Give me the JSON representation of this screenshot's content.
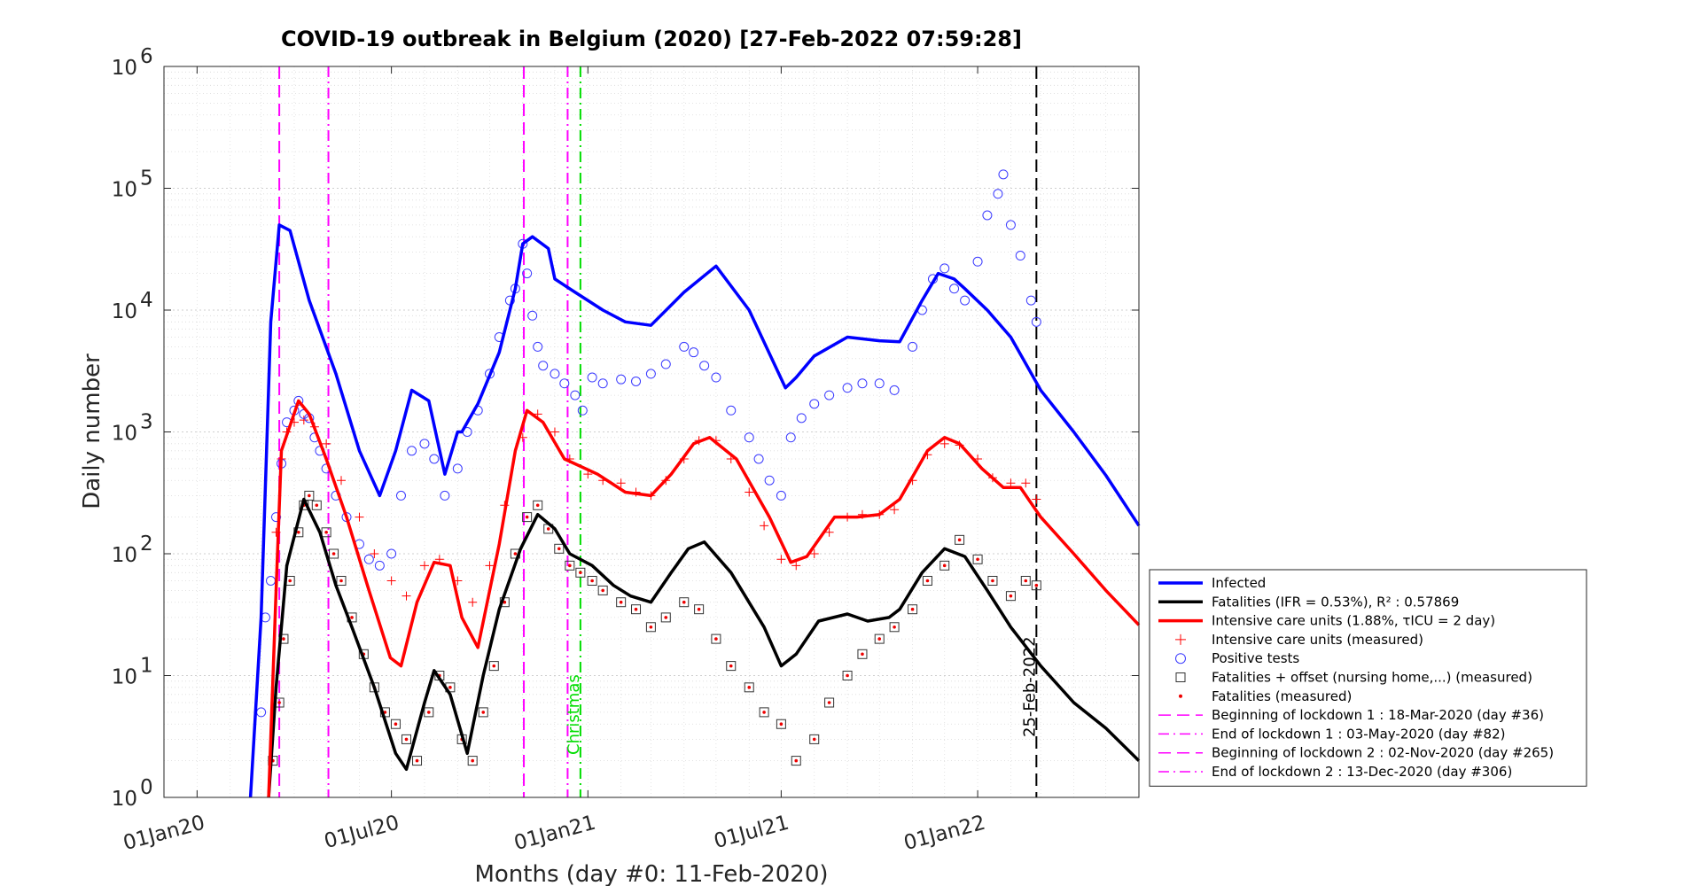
{
  "chart_data": {
    "type": "scatter",
    "title": "COVID-19 outbreak in Belgium (2020) [27-Feb-2022 07:59:28]",
    "xlabel": "Months (day #0: 11-Feb-2020)",
    "ylabel": "Daily number",
    "y_scale": "log",
    "ylim": [
      1,
      1000000
    ],
    "xlim": [
      "2019-12-01",
      "2022-06-01"
    ],
    "grid": true,
    "legend_position": "right",
    "x_ticks": [
      "01Jan20",
      "01Jul20",
      "01Jan21",
      "01Jul21",
      "01Jan22"
    ],
    "x_tick_dates": [
      "2020-01-01",
      "2020-07-01",
      "2021-01-01",
      "2021-07-01",
      "2022-01-01"
    ],
    "y_ticks": [
      {
        "base": "10",
        "exp": "0",
        "value": 1
      },
      {
        "base": "10",
        "exp": "1",
        "value": 10
      },
      {
        "base": "10",
        "exp": "2",
        "value": 100
      },
      {
        "base": "10",
        "exp": "3",
        "value": 1000
      },
      {
        "base": "10",
        "exp": "4",
        "value": 10000
      },
      {
        "base": "10",
        "exp": "5",
        "value": 100000
      },
      {
        "base": "10",
        "exp": "6",
        "value": 1000000
      }
    ],
    "vertical_lines": [
      {
        "date": "2020-03-18",
        "color": "#ff00ff",
        "dash": "dash"
      },
      {
        "date": "2020-05-03",
        "color": "#ff00ff",
        "dash": "dashdot"
      },
      {
        "date": "2020-11-02",
        "color": "#ff00ff",
        "dash": "dash"
      },
      {
        "date": "2020-12-13",
        "color": "#ff00ff",
        "dash": "dashdot"
      },
      {
        "date": "2020-12-25",
        "color": "#00dd00",
        "dash": "dashdot",
        "label": "Christmas"
      },
      {
        "date": "2022-02-25",
        "color": "#000000",
        "dash": "dash",
        "label": "25-Feb-2022"
      }
    ],
    "series": [
      {
        "name": "Infected",
        "kind": "line",
        "color": "#0000ff",
        "x": [
          "2020-02-20",
          "2020-03-01",
          "2020-03-10",
          "2020-03-18",
          "2020-03-28",
          "2020-04-15",
          "2020-05-10",
          "2020-06-01",
          "2020-06-20",
          "2020-07-05",
          "2020-07-20",
          "2020-08-05",
          "2020-08-20",
          "2020-09-01",
          "2020-09-05",
          "2020-09-20",
          "2020-10-10",
          "2020-10-25",
          "2020-11-01",
          "2020-11-10",
          "2020-11-25",
          "2020-12-01",
          "2020-12-20",
          "2021-01-15",
          "2021-02-05",
          "2021-03-01",
          "2021-04-01",
          "2021-05-01",
          "2021-06-01",
          "2021-07-05",
          "2021-07-15",
          "2021-08-01",
          "2021-09-01",
          "2021-10-01",
          "2021-10-20",
          "2021-11-10",
          "2021-11-25",
          "2021-12-10",
          "2021-12-20",
          "2022-01-10",
          "2022-02-01",
          "2022-03-01",
          "2022-04-01",
          "2022-05-01",
          "2022-06-01"
        ],
        "values": [
          1,
          30,
          8000,
          50000,
          45000,
          12000,
          3000,
          700,
          300,
          700,
          2200,
          1800,
          450,
          1000,
          1000,
          1700,
          4500,
          15000,
          35000,
          40000,
          32000,
          18000,
          14000,
          10000,
          8000,
          7500,
          14000,
          23000,
          10000,
          2300,
          2800,
          4200,
          6000,
          5600,
          5500,
          12000,
          20000,
          18000,
          15000,
          10000,
          6000,
          2200,
          1000,
          440,
          170
        ]
      },
      {
        "name": "Fatalities (IFR = 0.53%), R² : 0.57869",
        "kind": "line",
        "color": "#000000",
        "x": [
          "2020-03-08",
          "2020-03-15",
          "2020-03-25",
          "2020-04-10",
          "2020-04-25",
          "2020-05-10",
          "2020-05-25",
          "2020-06-15",
          "2020-07-05",
          "2020-07-15",
          "2020-08-01",
          "2020-08-10",
          "2020-08-25",
          "2020-09-10",
          "2020-09-25",
          "2020-10-10",
          "2020-10-30",
          "2020-11-15",
          "2020-12-01",
          "2020-12-15",
          "2021-01-05",
          "2021-01-25",
          "2021-02-10",
          "2021-03-01",
          "2021-03-20",
          "2021-04-05",
          "2021-04-20",
          "2021-05-15",
          "2021-06-15",
          "2021-07-01",
          "2021-07-15",
          "2021-08-05",
          "2021-09-01",
          "2021-09-20",
          "2021-10-10",
          "2021-10-20",
          "2021-11-10",
          "2021-12-01",
          "2021-12-20",
          "2022-01-10",
          "2022-02-01",
          "2022-03-01",
          "2022-04-01",
          "2022-05-01",
          "2022-06-01"
        ],
        "values": [
          1,
          8,
          80,
          280,
          150,
          55,
          25,
          8,
          2.3,
          1.7,
          6,
          11,
          7,
          2.3,
          10,
          35,
          110,
          210,
          160,
          100,
          80,
          55,
          45,
          40,
          70,
          110,
          125,
          70,
          25,
          12,
          15,
          28,
          32,
          28,
          30,
          35,
          70,
          110,
          95,
          50,
          25,
          12,
          6,
          3.7,
          2
        ]
      },
      {
        "name": "Intensive care units (1.88%, τ_ICU = 2 day)",
        "kind": "line",
        "color": "#ff0000",
        "x": [
          "2020-03-08",
          "2020-03-15",
          "2020-03-20",
          "2020-04-05",
          "2020-04-15",
          "2020-05-01",
          "2020-05-20",
          "2020-06-10",
          "2020-06-30",
          "2020-07-10",
          "2020-07-25",
          "2020-08-10",
          "2020-08-25",
          "2020-09-05",
          "2020-09-20",
          "2020-10-10",
          "2020-10-25",
          "2020-11-05",
          "2020-11-20",
          "2020-12-10",
          "2021-01-10",
          "2021-02-05",
          "2021-03-01",
          "2021-03-20",
          "2021-04-10",
          "2021-04-25",
          "2021-05-20",
          "2021-06-20",
          "2021-07-10",
          "2021-07-25",
          "2021-08-20",
          "2021-09-10",
          "2021-10-01",
          "2021-10-20",
          "2021-11-15",
          "2021-12-01",
          "2021-12-15",
          "2022-01-05",
          "2022-01-25",
          "2022-02-10",
          "2022-03-01",
          "2022-04-01",
          "2022-05-01",
          "2022-06-01"
        ],
        "values": [
          1,
          50,
          700,
          1800,
          1400,
          600,
          200,
          50,
          14,
          12,
          40,
          85,
          80,
          30,
          17,
          120,
          700,
          1500,
          1200,
          600,
          450,
          320,
          300,
          450,
          800,
          900,
          600,
          200,
          85,
          95,
          200,
          200,
          210,
          280,
          700,
          900,
          800,
          500,
          350,
          350,
          200,
          100,
          50,
          26
        ]
      },
      {
        "name": "Intensive care units (measured)",
        "kind": "markers",
        "marker": "+",
        "color": "#ff0000",
        "x": [
          "2020-03-15",
          "2020-03-20",
          "2020-03-25",
          "2020-04-01",
          "2020-04-10",
          "2020-04-20",
          "2020-05-01",
          "2020-05-15",
          "2020-06-01",
          "2020-06-15",
          "2020-07-01",
          "2020-07-15",
          "2020-08-01",
          "2020-08-15",
          "2020-09-01",
          "2020-09-15",
          "2020-10-01",
          "2020-10-15",
          "2020-11-01",
          "2020-11-15",
          "2020-12-01",
          "2020-12-15",
          "2021-01-01",
          "2021-01-15",
          "2021-02-01",
          "2021-02-15",
          "2021-03-01",
          "2021-03-15",
          "2021-04-01",
          "2021-04-15",
          "2021-05-01",
          "2021-05-15",
          "2021-06-01",
          "2021-06-15",
          "2021-07-01",
          "2021-07-15",
          "2021-08-01",
          "2021-08-15",
          "2021-09-01",
          "2021-09-15",
          "2021-10-01",
          "2021-10-15",
          "2021-11-01",
          "2021-11-15",
          "2021-12-01",
          "2021-12-15",
          "2022-01-01",
          "2022-01-15",
          "2022-02-01",
          "2022-02-15",
          "2022-02-25"
        ],
        "values": [
          150,
          600,
          1000,
          1200,
          1250,
          1100,
          800,
          400,
          200,
          100,
          60,
          45,
          80,
          90,
          60,
          40,
          80,
          250,
          900,
          1400,
          1000,
          600,
          450,
          400,
          380,
          320,
          300,
          400,
          600,
          850,
          850,
          600,
          320,
          170,
          90,
          80,
          100,
          150,
          200,
          210,
          210,
          230,
          400,
          650,
          800,
          780,
          600,
          420,
          380,
          380,
          280
        ]
      },
      {
        "name": "Positive tests",
        "kind": "markers",
        "marker": "o",
        "color": "#3a3aff",
        "x": [
          "2020-03-01",
          "2020-03-05",
          "2020-03-10",
          "2020-03-15",
          "2020-03-20",
          "2020-03-25",
          "2020-04-01",
          "2020-04-05",
          "2020-04-10",
          "2020-04-15",
          "2020-04-20",
          "2020-04-25",
          "2020-05-01",
          "2020-05-10",
          "2020-05-20",
          "2020-06-01",
          "2020-06-10",
          "2020-06-20",
          "2020-07-01",
          "2020-07-10",
          "2020-07-20",
          "2020-08-01",
          "2020-08-10",
          "2020-08-20",
          "2020-09-01",
          "2020-09-10",
          "2020-09-20",
          "2020-10-01",
          "2020-10-10",
          "2020-10-20",
          "2020-10-25",
          "2020-11-01",
          "2020-11-05",
          "2020-11-10",
          "2020-11-15",
          "2020-11-20",
          "2020-12-01",
          "2020-12-10",
          "2020-12-20",
          "2020-12-27",
          "2021-01-05",
          "2021-01-15",
          "2021-02-01",
          "2021-02-15",
          "2021-03-01",
          "2021-03-15",
          "2021-04-01",
          "2021-04-10",
          "2021-04-20",
          "2021-05-01",
          "2021-05-15",
          "2021-06-01",
          "2021-06-10",
          "2021-06-20",
          "2021-07-01",
          "2021-07-10",
          "2021-07-20",
          "2021-08-01",
          "2021-08-15",
          "2021-09-01",
          "2021-09-15",
          "2021-10-01",
          "2021-10-15",
          "2021-11-01",
          "2021-11-10",
          "2021-11-20",
          "2021-12-01",
          "2021-12-10",
          "2021-12-20",
          "2022-01-01",
          "2022-01-10",
          "2022-01-20",
          "2022-01-25",
          "2022-02-01",
          "2022-02-10",
          "2022-02-20",
          "2022-02-25"
        ],
        "values": [
          5,
          30,
          60,
          200,
          550,
          1200,
          1500,
          1800,
          1400,
          1300,
          900,
          700,
          500,
          300,
          200,
          120,
          90,
          80,
          100,
          300,
          700,
          800,
          600,
          300,
          500,
          1000,
          1500,
          3000,
          6000,
          12000,
          15000,
          35000,
          20000,
          9000,
          5000,
          3500,
          3000,
          2500,
          2000,
          1500,
          2800,
          2500,
          2700,
          2600,
          3000,
          3600,
          5000,
          4500,
          3500,
          2800,
          1500,
          900,
          600,
          400,
          300,
          900,
          1300,
          1700,
          2000,
          2300,
          2500,
          2500,
          2200,
          5000,
          10000,
          18000,
          22000,
          15000,
          12000,
          25000,
          60000,
          90000,
          130000,
          50000,
          28000,
          12000,
          8000
        ]
      },
      {
        "name": "Fatalities + offset (nursing home,...) (measured)",
        "kind": "markers",
        "marker": "square",
        "color": "#333333",
        "x": [
          "2020-03-12",
          "2020-03-18",
          "2020-03-22",
          "2020-03-28",
          "2020-04-05",
          "2020-04-10",
          "2020-04-15",
          "2020-04-22",
          "2020-05-01",
          "2020-05-08",
          "2020-05-15",
          "2020-05-25",
          "2020-06-05",
          "2020-06-15",
          "2020-06-25",
          "2020-07-05",
          "2020-07-15",
          "2020-07-25",
          "2020-08-05",
          "2020-08-15",
          "2020-08-25",
          "2020-09-05",
          "2020-09-15",
          "2020-09-25",
          "2020-10-05",
          "2020-10-15",
          "2020-10-25",
          "2020-11-05",
          "2020-11-15",
          "2020-11-25",
          "2020-12-05",
          "2020-12-15",
          "2020-12-25",
          "2021-01-05",
          "2021-01-15",
          "2021-02-01",
          "2021-02-15",
          "2021-03-01",
          "2021-03-15",
          "2021-04-01",
          "2021-04-15",
          "2021-05-01",
          "2021-05-15",
          "2021-06-01",
          "2021-06-15",
          "2021-07-01",
          "2021-07-15",
          "2021-08-01",
          "2021-08-15",
          "2021-09-01",
          "2021-09-15",
          "2021-10-01",
          "2021-10-15",
          "2021-11-01",
          "2021-11-15",
          "2021-12-01",
          "2021-12-15",
          "2022-01-01",
          "2022-01-15",
          "2022-02-01",
          "2022-02-15",
          "2022-02-25"
        ],
        "values": [
          2,
          6,
          20,
          60,
          150,
          250,
          300,
          250,
          150,
          100,
          60,
          30,
          15,
          8,
          5,
          4,
          3,
          2,
          5,
          10,
          8,
          3,
          2,
          5,
          12,
          40,
          100,
          200,
          250,
          160,
          110,
          80,
          70,
          60,
          50,
          40,
          35,
          25,
          30,
          40,
          35,
          20,
          12,
          8,
          5,
          4,
          2,
          3,
          6,
          10,
          15,
          20,
          25,
          35,
          60,
          80,
          130,
          90,
          60,
          45,
          60,
          55
        ]
      },
      {
        "name": "Fatalities (measured)",
        "kind": "markers",
        "marker": "dot",
        "color": "#ee0000",
        "x": [
          "2020-03-12",
          "2020-03-18",
          "2020-03-22",
          "2020-03-28",
          "2020-04-05",
          "2020-04-10",
          "2020-04-15",
          "2020-04-22",
          "2020-05-01",
          "2020-05-08",
          "2020-05-15",
          "2020-05-25",
          "2020-06-05",
          "2020-06-15",
          "2020-06-25",
          "2020-07-05",
          "2020-07-15",
          "2020-07-25",
          "2020-08-05",
          "2020-08-15",
          "2020-08-25",
          "2020-09-05",
          "2020-09-15",
          "2020-09-25",
          "2020-10-05",
          "2020-10-15",
          "2020-10-25",
          "2020-11-05",
          "2020-11-15",
          "2020-11-25",
          "2020-12-05",
          "2020-12-15",
          "2020-12-25",
          "2021-01-05",
          "2021-01-15",
          "2021-02-01",
          "2021-02-15",
          "2021-03-01",
          "2021-03-15",
          "2021-04-01",
          "2021-04-15",
          "2021-05-01",
          "2021-05-15",
          "2021-06-01",
          "2021-06-15",
          "2021-07-01",
          "2021-07-15",
          "2021-08-01",
          "2021-08-15",
          "2021-09-01",
          "2021-09-15",
          "2021-10-01",
          "2021-10-15",
          "2021-11-01",
          "2021-11-15",
          "2021-12-01",
          "2021-12-15",
          "2022-01-01",
          "2022-01-15",
          "2022-02-01",
          "2022-02-15",
          "2022-02-25"
        ],
        "values": [
          2,
          6,
          20,
          60,
          150,
          250,
          300,
          250,
          150,
          100,
          60,
          30,
          15,
          8,
          5,
          4,
          3,
          2,
          5,
          10,
          8,
          3,
          2,
          5,
          12,
          40,
          100,
          200,
          250,
          160,
          110,
          80,
          70,
          60,
          50,
          40,
          35,
          25,
          30,
          40,
          35,
          20,
          12,
          8,
          5,
          4,
          2,
          3,
          6,
          10,
          15,
          20,
          25,
          35,
          60,
          80,
          130,
          90,
          60,
          45,
          60,
          55
        ]
      }
    ],
    "legend": [
      {
        "label": "Infected",
        "style": "line",
        "color": "#0000ff"
      },
      {
        "label": "Fatalities (IFR = 0.53%), R² : 0.57869",
        "style": "line",
        "color": "#000000"
      },
      {
        "label": "Intensive care units (1.88%, τICU = 2 day)",
        "style": "line",
        "color": "#ff0000"
      },
      {
        "label": "Intensive care units (measured)",
        "style": "plus",
        "color": "#ff0000"
      },
      {
        "label": "Positive tests",
        "style": "circle",
        "color": "#3a3aff"
      },
      {
        "label": "Fatalities + offset (nursing home,...) (measured)",
        "style": "square",
        "color": "#333333"
      },
      {
        "label": "Fatalities (measured)",
        "style": "dot",
        "color": "#ee0000"
      },
      {
        "label": "Beginning of lockdown 1 : 18-Mar-2020 (day #36)",
        "style": "dash",
        "color": "#ff00ff"
      },
      {
        "label": "End of lockdown 1 : 03-May-2020 (day #82)",
        "style": "dashdot",
        "color": "#ff00ff"
      },
      {
        "label": "Beginning of lockdown 2 : 02-Nov-2020 (day #265)",
        "style": "dash",
        "color": "#ff00ff"
      },
      {
        "label": "End of lockdown 2 : 13-Dec-2020 (day #306)",
        "style": "dashdot",
        "color": "#ff00ff"
      }
    ]
  }
}
